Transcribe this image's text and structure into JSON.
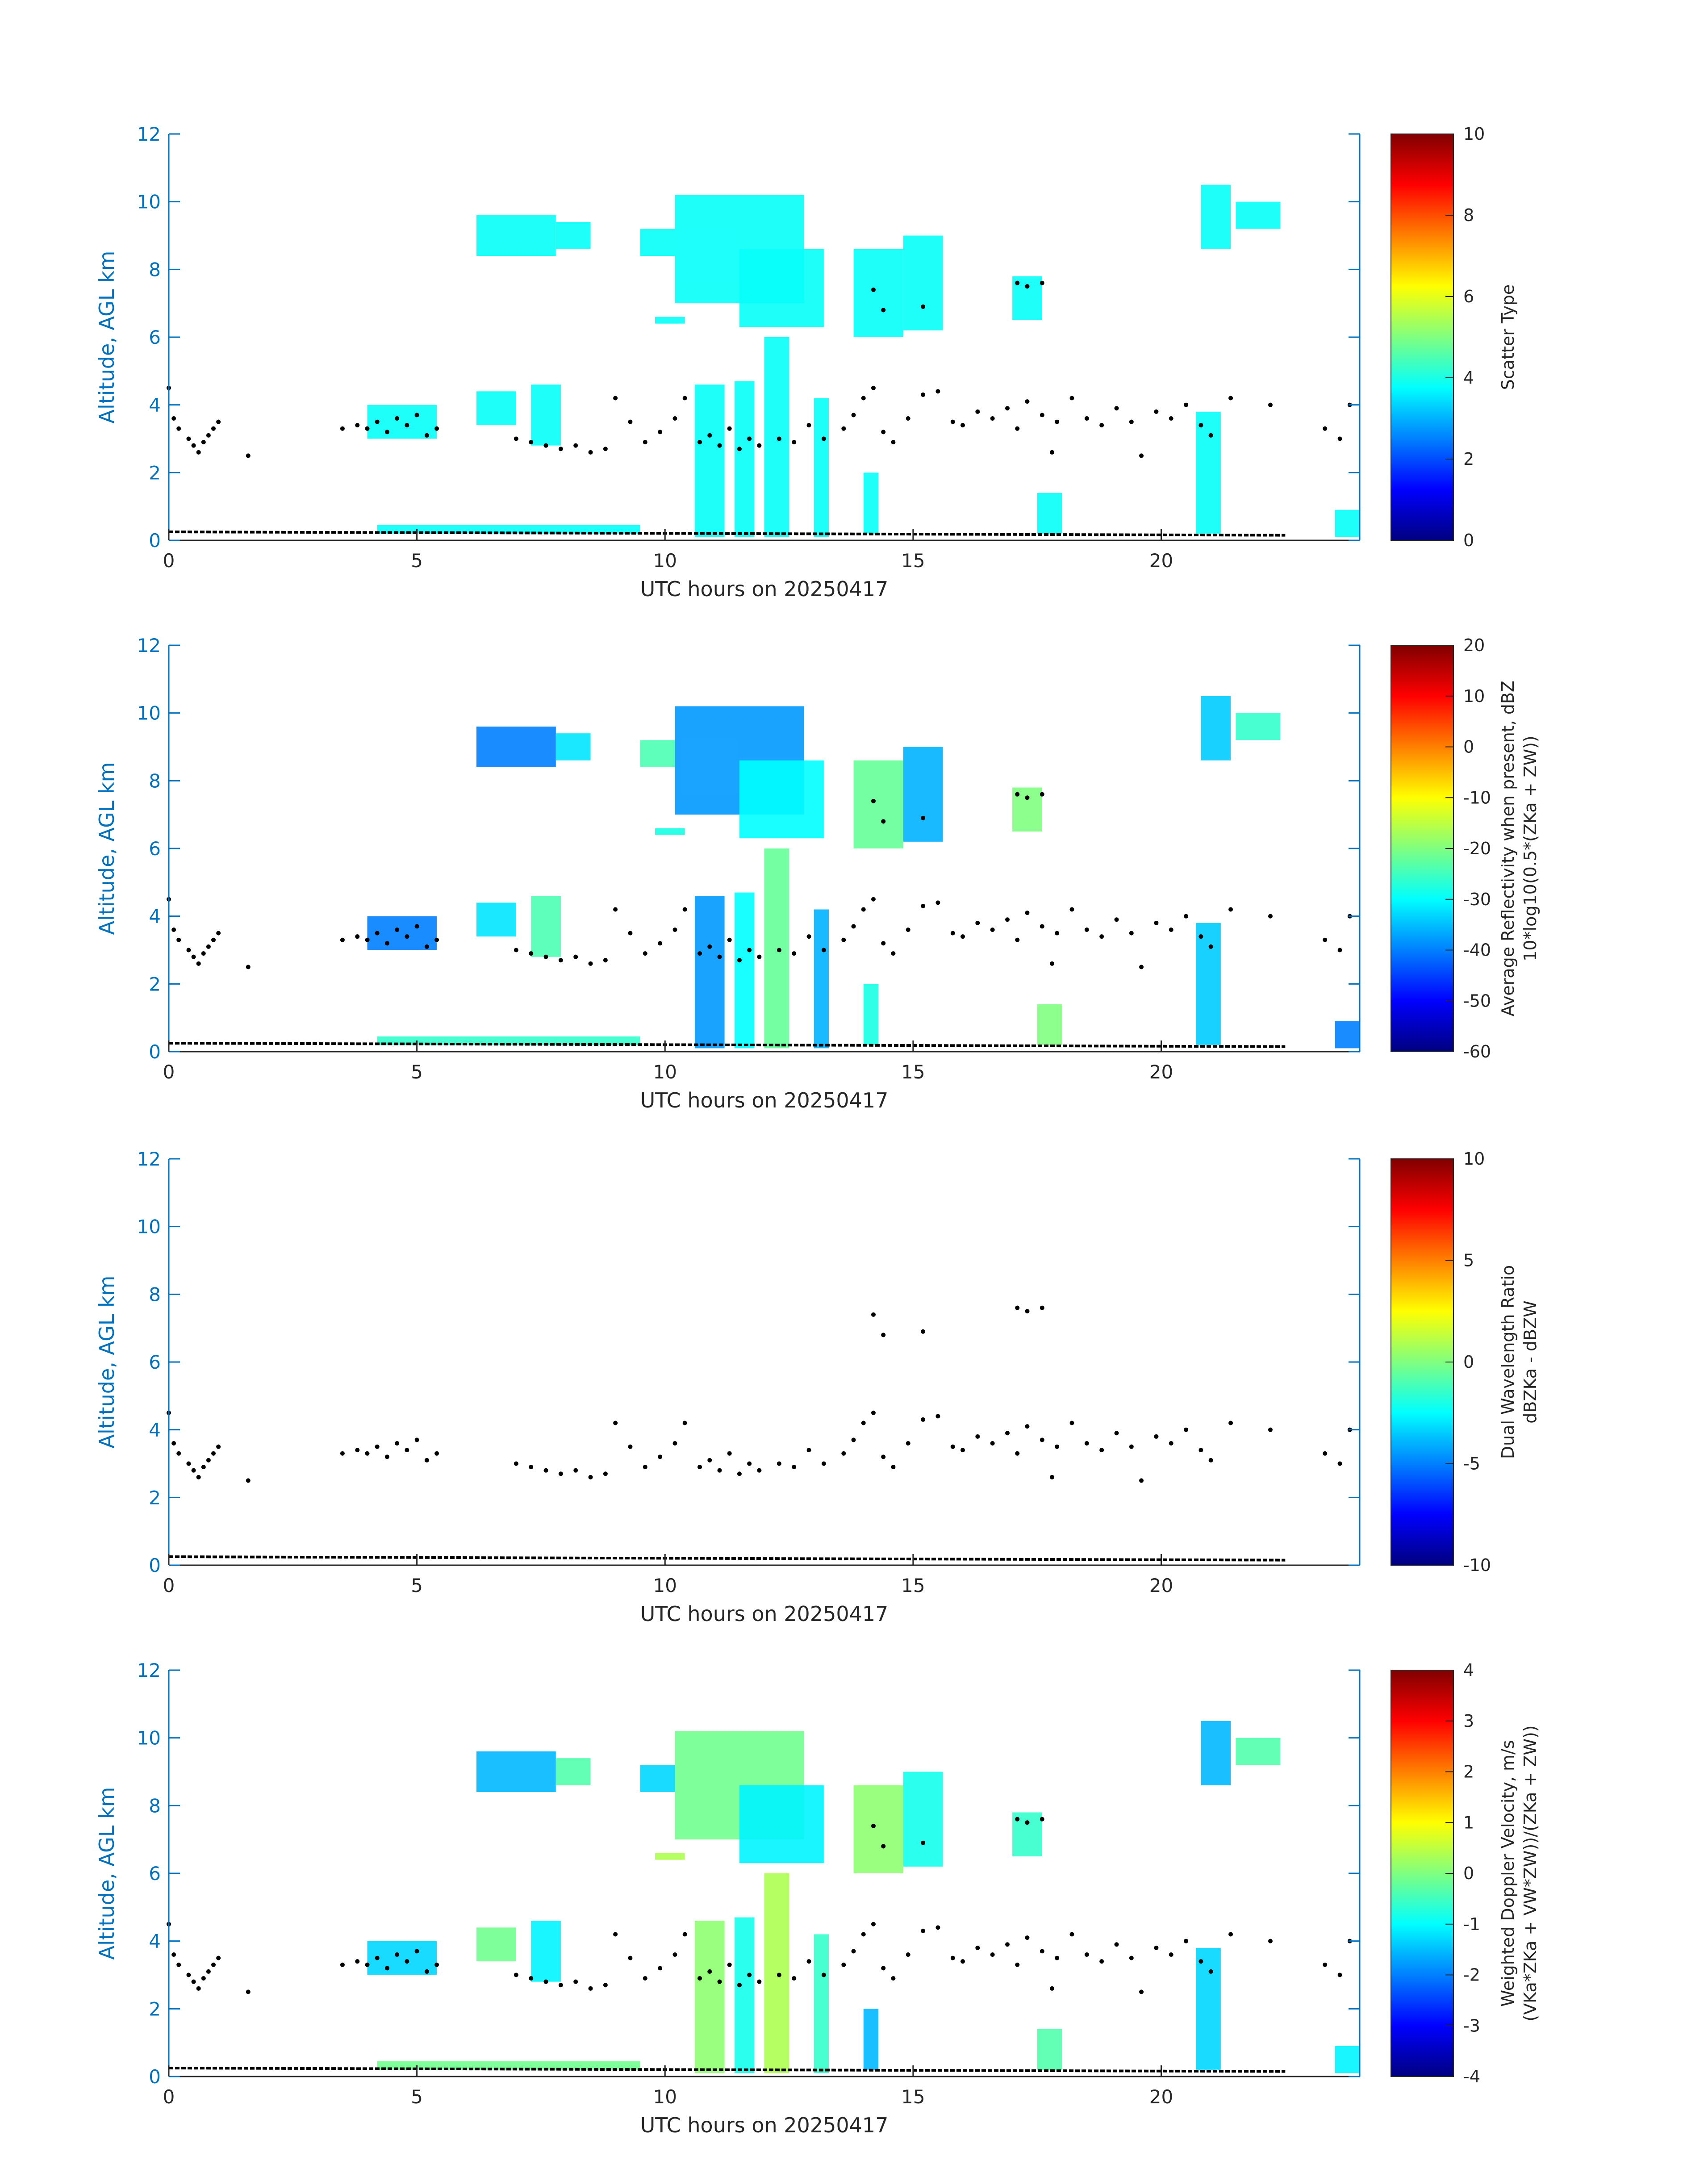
{
  "chart_data": [
    {
      "type": "heatmap",
      "title": "",
      "xlabel": "UTC hours on 20250417",
      "ylabel": "Altitude, AGL km",
      "xlim": [
        0,
        24
      ],
      "ylim": [
        0,
        12
      ],
      "xticks": [
        "0",
        "5",
        "10",
        "15",
        "20"
      ],
      "yticks": [
        "0",
        "2",
        "4",
        "6",
        "8",
        "10",
        "12"
      ],
      "colorbar": {
        "label_lines": [
          "Scatter Type"
        ],
        "range": [
          0,
          10
        ],
        "ticks": [
          "0",
          "2",
          "4",
          "6",
          "8",
          "10"
        ],
        "colormap": "jet"
      },
      "dominant_value": 3.8
    },
    {
      "type": "heatmap",
      "title": "",
      "xlabel": "UTC hours on 20250417",
      "ylabel": "Altitude, AGL km",
      "xlim": [
        0,
        24
      ],
      "ylim": [
        0,
        12
      ],
      "xticks": [
        "0",
        "5",
        "10",
        "15",
        "20"
      ],
      "yticks": [
        "0",
        "2",
        "4",
        "6",
        "8",
        "10",
        "12"
      ],
      "colorbar": {
        "label_lines": [
          "Average Reflectivity when present, dBZ",
          "10*log10(0.5*(ZKa + ZW))"
        ],
        "range": [
          -60,
          20
        ],
        "ticks": [
          "-60",
          "-50",
          "-40",
          "-30",
          "-20",
          "-10",
          "0",
          "10",
          "20"
        ],
        "colormap": "jet"
      },
      "dominant_value": -30
    },
    {
      "type": "heatmap",
      "title": "",
      "xlabel": "UTC hours on 20250417",
      "ylabel": "Altitude, AGL km",
      "xlim": [
        0,
        24
      ],
      "ylim": [
        0,
        12
      ],
      "xticks": [
        "0",
        "5",
        "10",
        "15",
        "20"
      ],
      "yticks": [
        "0",
        "2",
        "4",
        "6",
        "8",
        "10",
        "12"
      ],
      "colorbar": {
        "label_lines": [
          "Dual Wavelength Ratio",
          "dBZKa - dBZW"
        ],
        "range": [
          -10,
          10
        ],
        "ticks": [
          "-10",
          "-5",
          "0",
          "5",
          "10"
        ],
        "colormap": "jet"
      },
      "dominant_value": null
    },
    {
      "type": "heatmap",
      "title": "",
      "xlabel": "UTC hours on 20250417",
      "ylabel": "Altitude, AGL km",
      "xlim": [
        0,
        24
      ],
      "ylim": [
        0,
        12
      ],
      "xticks": [
        "0",
        "5",
        "10",
        "15",
        "20"
      ],
      "yticks": [
        "0",
        "2",
        "4",
        "6",
        "8",
        "10",
        "12"
      ],
      "colorbar": {
        "label_lines": [
          "Weighted Doppler Velocity, m/s",
          "(VKa*ZKa + VW*ZW))/(ZKa + ZW))"
        ],
        "range": [
          -4,
          4
        ],
        "ticks": [
          "-4",
          "-3",
          "-2",
          "-1",
          "0",
          "1",
          "2",
          "3",
          "4"
        ],
        "colormap": "jet"
      },
      "dominant_value": -0.6
    }
  ],
  "cloud_regions": [
    {
      "x0": 6.2,
      "x1": 7.8,
      "y0": 8.4,
      "y1": 9.6
    },
    {
      "x0": 7.8,
      "x1": 8.5,
      "y0": 8.6,
      "y1": 9.4
    },
    {
      "x0": 9.5,
      "x1": 10.2,
      "y0": 8.4,
      "y1": 9.2
    },
    {
      "x0": 10.2,
      "x1": 12.8,
      "y0": 7.0,
      "y1": 10.2
    },
    {
      "x0": 11.5,
      "x1": 13.2,
      "y0": 6.3,
      "y1": 8.6
    },
    {
      "x0": 13.8,
      "x1": 14.8,
      "y0": 6.0,
      "y1": 8.6
    },
    {
      "x0": 14.8,
      "x1": 15.6,
      "y0": 6.2,
      "y1": 9.0
    },
    {
      "x0": 9.8,
      "x1": 10.4,
      "y0": 6.4,
      "y1": 6.6
    },
    {
      "x0": 17.0,
      "x1": 17.6,
      "y0": 6.5,
      "y1": 7.8
    },
    {
      "x0": 20.8,
      "x1": 21.4,
      "y0": 8.6,
      "y1": 10.5
    },
    {
      "x0": 21.5,
      "x1": 22.4,
      "y0": 9.2,
      "y1": 10.0
    },
    {
      "x0": 4.0,
      "x1": 5.4,
      "y0": 3.0,
      "y1": 4.0
    },
    {
      "x0": 6.2,
      "x1": 7.0,
      "y0": 3.4,
      "y1": 4.4
    },
    {
      "x0": 7.3,
      "x1": 7.9,
      "y0": 2.8,
      "y1": 4.6
    },
    {
      "x0": 10.6,
      "x1": 11.2,
      "y0": 0.1,
      "y1": 4.6
    },
    {
      "x0": 11.4,
      "x1": 11.8,
      "y0": 0.1,
      "y1": 4.7
    },
    {
      "x0": 12.0,
      "x1": 12.5,
      "y0": 0.1,
      "y1": 6.0
    },
    {
      "x0": 13.0,
      "x1": 13.3,
      "y0": 0.1,
      "y1": 4.2
    },
    {
      "x0": 14.0,
      "x1": 14.3,
      "y0": 0.2,
      "y1": 2.0
    },
    {
      "x0": 17.5,
      "x1": 18.0,
      "y0": 0.2,
      "y1": 1.4
    },
    {
      "x0": 20.7,
      "x1": 21.2,
      "y0": 0.2,
      "y1": 3.8
    },
    {
      "x0": 4.2,
      "x1": 9.5,
      "y0": 0.2,
      "y1": 0.45
    },
    {
      "x0": 23.5,
      "x1": 24.0,
      "y0": 0.1,
      "y1": 0.9
    }
  ],
  "cloud_base_points": [
    [
      0.0,
      4.5
    ],
    [
      0.1,
      3.6
    ],
    [
      0.2,
      3.3
    ],
    [
      0.4,
      3.0
    ],
    [
      0.5,
      2.8
    ],
    [
      0.6,
      2.6
    ],
    [
      0.7,
      2.9
    ],
    [
      0.8,
      3.1
    ],
    [
      0.9,
      3.3
    ],
    [
      1.0,
      3.5
    ],
    [
      1.6,
      2.5
    ],
    [
      3.5,
      3.3
    ],
    [
      3.8,
      3.4
    ],
    [
      4.0,
      3.3
    ],
    [
      4.2,
      3.5
    ],
    [
      4.4,
      3.2
    ],
    [
      4.6,
      3.6
    ],
    [
      4.8,
      3.4
    ],
    [
      5.0,
      3.7
    ],
    [
      5.2,
      3.1
    ],
    [
      5.4,
      3.3
    ],
    [
      7.0,
      3.0
    ],
    [
      7.3,
      2.9
    ],
    [
      7.6,
      2.8
    ],
    [
      7.9,
      2.7
    ],
    [
      8.2,
      2.8
    ],
    [
      8.5,
      2.6
    ],
    [
      8.8,
      2.7
    ],
    [
      9.0,
      4.2
    ],
    [
      9.3,
      3.5
    ],
    [
      9.6,
      2.9
    ],
    [
      9.9,
      3.2
    ],
    [
      10.2,
      3.6
    ],
    [
      10.4,
      4.2
    ],
    [
      10.7,
      2.9
    ],
    [
      10.9,
      3.1
    ],
    [
      11.1,
      2.8
    ],
    [
      11.3,
      3.3
    ],
    [
      11.5,
      2.7
    ],
    [
      11.7,
      3.0
    ],
    [
      11.9,
      2.8
    ],
    [
      12.3,
      3.0
    ],
    [
      12.6,
      2.9
    ],
    [
      12.9,
      3.4
    ],
    [
      13.2,
      3.0
    ],
    [
      13.6,
      3.3
    ],
    [
      13.8,
      3.7
    ],
    [
      14.0,
      4.2
    ],
    [
      14.2,
      4.5
    ],
    [
      14.4,
      3.2
    ],
    [
      14.6,
      2.9
    ],
    [
      14.9,
      3.6
    ],
    [
      15.2,
      4.3
    ],
    [
      15.5,
      4.4
    ],
    [
      15.8,
      3.5
    ],
    [
      16.0,
      3.4
    ],
    [
      16.3,
      3.8
    ],
    [
      16.6,
      3.6
    ],
    [
      16.9,
      3.9
    ],
    [
      17.1,
      3.3
    ],
    [
      17.3,
      4.1
    ],
    [
      17.6,
      3.7
    ],
    [
      17.9,
      3.5
    ],
    [
      18.2,
      4.2
    ],
    [
      18.5,
      3.6
    ],
    [
      18.8,
      3.4
    ],
    [
      19.1,
      3.9
    ],
    [
      19.4,
      3.5
    ],
    [
      19.6,
      2.5
    ],
    [
      19.9,
      3.8
    ],
    [
      20.2,
      3.6
    ],
    [
      20.5,
      4.0
    ],
    [
      20.8,
      3.4
    ],
    [
      21.0,
      3.1
    ],
    [
      21.4,
      4.2
    ],
    [
      22.2,
      4.0
    ],
    [
      23.3,
      3.3
    ],
    [
      23.6,
      3.0
    ],
    [
      23.8,
      4.0
    ],
    [
      14.2,
      7.4
    ],
    [
      14.4,
      6.8
    ],
    [
      15.2,
      6.9
    ],
    [
      17.1,
      7.6
    ],
    [
      17.3,
      7.5
    ],
    [
      17.6,
      7.6
    ],
    [
      17.8,
      2.6
    ]
  ]
}
